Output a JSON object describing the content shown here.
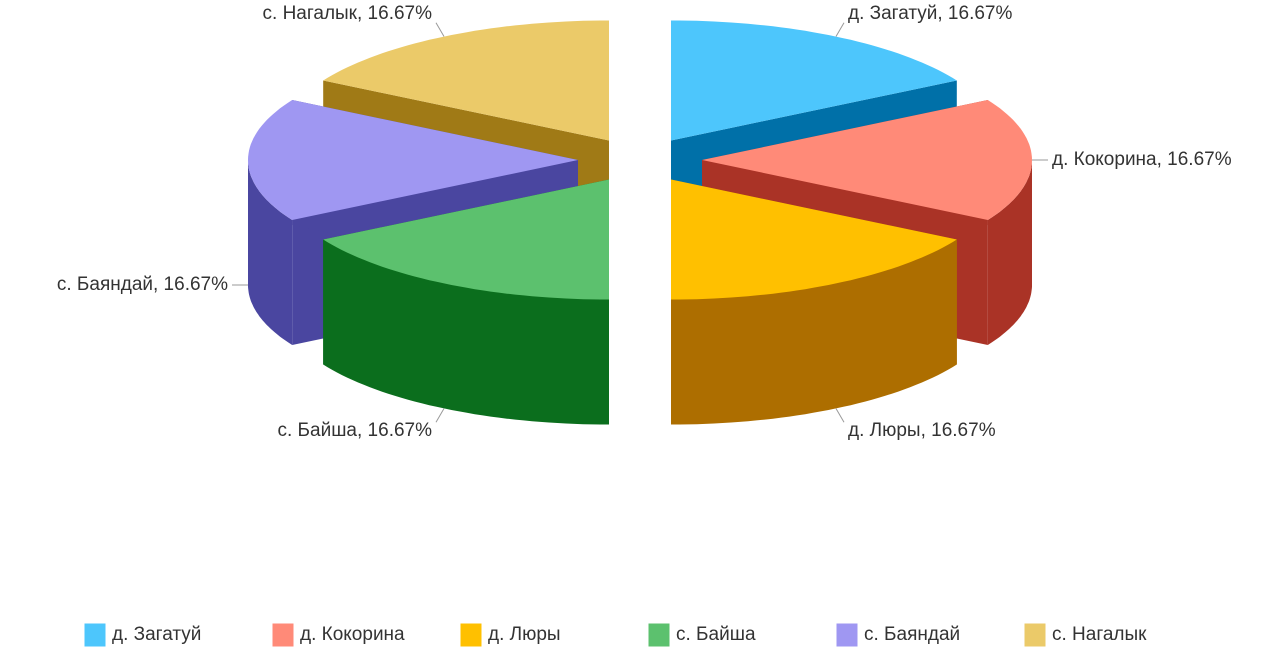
{
  "chart_data": {
    "type": "pie3d",
    "categories": [
      "д. Загатуй",
      "д. Кокорина",
      "д. Люры",
      "с. Байша",
      "с. Баяндай",
      "с. Нагалык"
    ],
    "values": [
      16.67,
      16.67,
      16.67,
      16.67,
      16.67,
      16.67
    ],
    "value_labels": [
      "д. Загатуй, 16.67%",
      "д. Кокорина, 16.67%",
      "д. Люры, 16.67%",
      "с. Байша, 16.67%",
      "с. Баяндай, 16.67%",
      "с. Нагалык, 16.67%"
    ],
    "colors": [
      "#4dc6fc",
      "#ff8a78",
      "#ffc000",
      "#5cc16e",
      "#9f97f2",
      "#ebca69"
    ],
    "side_colors": [
      "#0070a8",
      "#aa3326",
      "#ad6e00",
      "#0b6e1d",
      "#4a46a0",
      "#a07a16"
    ],
    "legend": "bottom"
  }
}
